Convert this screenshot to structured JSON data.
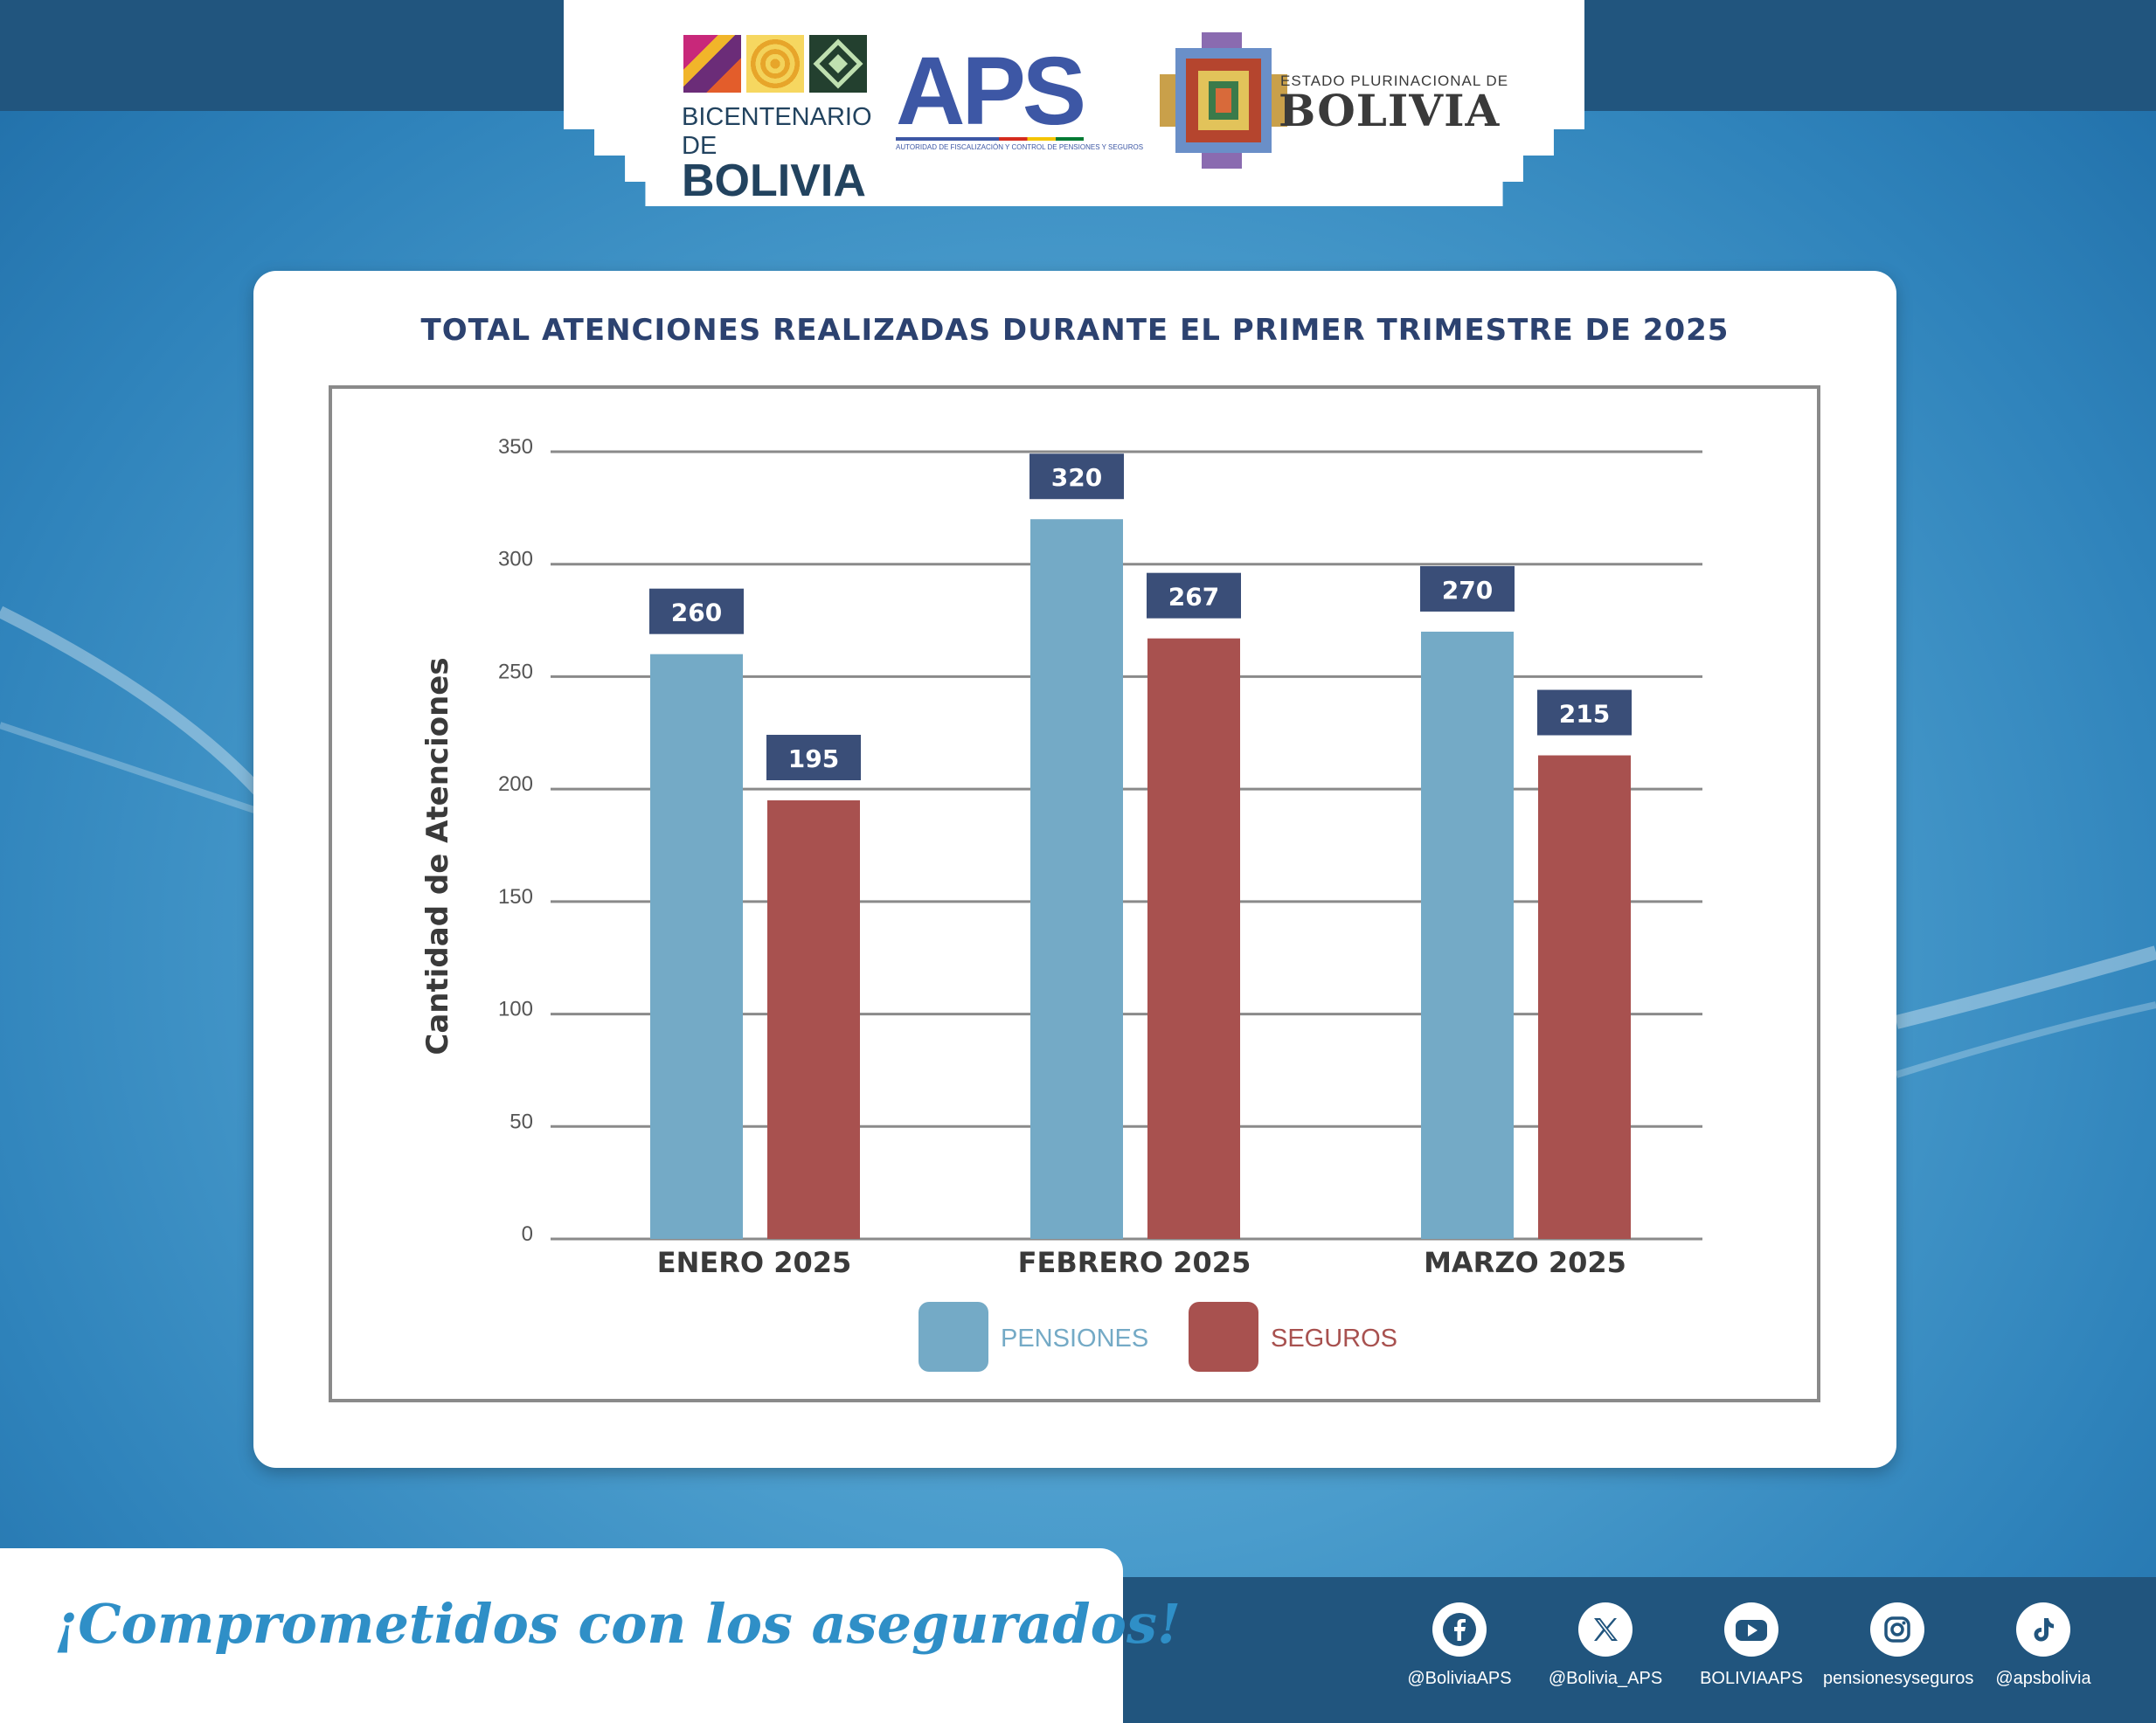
{
  "header": {
    "bicentenario_line1": "BICENTENARIO DE",
    "bicentenario_line2": "BOLIVIA",
    "aps_name": "APS",
    "aps_subtitle": "AUTORIDAD DE FISCALIZACIÓN Y CONTROL DE PENSIONES Y SEGUROS",
    "estado_line1": "ESTADO PLURINACIONAL DE",
    "estado_line2": "BOLIVIA"
  },
  "chart_data": {
    "type": "bar",
    "title": "TOTAL ATENCIONES REALIZADAS DURANTE EL PRIMER TRIMESTRE DE 2025",
    "categories": [
      "ENERO 2025",
      "FEBRERO 2025",
      "MARZO 2025"
    ],
    "series": [
      {
        "name": "PENSIONES",
        "values": [
          260,
          320,
          270
        ],
        "color": "#74aac6"
      },
      {
        "name": "SEGUROS",
        "values": [
          195,
          267,
          215
        ],
        "color": "#a8514f"
      }
    ],
    "xlabel": "",
    "ylabel": "Cantidad de Atenciones",
    "ylim": [
      0,
      350
    ],
    "yticks": [
      0,
      50,
      100,
      150,
      200,
      250,
      300,
      350
    ],
    "grid": true,
    "legend": "bottom-center",
    "label_box_color": "#3a4e78",
    "axis_text_color": "#3a3a3a"
  },
  "footer": {
    "tagline": "¡Comprometidos con los asegurados!",
    "socials": [
      {
        "network": "facebook-icon",
        "handle": "@BoliviaAPS"
      },
      {
        "network": "x-icon",
        "handle": "@Bolivia_APS"
      },
      {
        "network": "youtube-icon",
        "handle": "BOLIVIAAPS"
      },
      {
        "network": "instagram-icon",
        "handle": "pensionesyseguros"
      },
      {
        "network": "tiktok-icon",
        "handle": "@apsbolivia"
      }
    ]
  }
}
